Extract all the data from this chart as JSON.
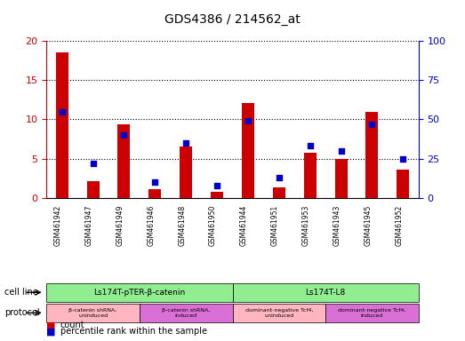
{
  "title": "GDS4386 / 214562_at",
  "samples": [
    "GSM461942",
    "GSM461947",
    "GSM461949",
    "GSM461946",
    "GSM461948",
    "GSM461950",
    "GSM461944",
    "GSM461951",
    "GSM461953",
    "GSM461943",
    "GSM461945",
    "GSM461952"
  ],
  "counts": [
    18.5,
    2.1,
    9.4,
    1.1,
    6.5,
    0.8,
    12.1,
    1.3,
    5.7,
    5.0,
    11.0,
    3.6
  ],
  "percentiles": [
    55,
    22,
    40,
    10,
    35,
    8,
    49,
    13,
    33,
    30,
    47,
    25
  ],
  "ylim_left": [
    0,
    20
  ],
  "ylim_right": [
    0,
    100
  ],
  "yticks_left": [
    0,
    5,
    10,
    15,
    20
  ],
  "yticks_right": [
    0,
    25,
    50,
    75,
    100
  ],
  "bar_color": "#cc0000",
  "dot_color": "#0000cc",
  "bar_width": 0.4,
  "cell_line_groups": [
    {
      "label": "Ls174T-pTER-β-catenin",
      "start": 0,
      "end": 6,
      "color": "#90ee90"
    },
    {
      "label": "Ls174T-L8",
      "start": 6,
      "end": 12,
      "color": "#90ee90"
    }
  ],
  "protocol_groups": [
    {
      "label": "β-catenin shRNA,\nuninduced",
      "start": 0,
      "end": 3,
      "color": "#ffb6c1"
    },
    {
      "label": "β-catenin shRNA,\ninduced",
      "start": 3,
      "end": 6,
      "color": "#da70d6"
    },
    {
      "label": "dominant-negative Tcf4,\nuninduced",
      "start": 6,
      "end": 9,
      "color": "#ffb6c1"
    },
    {
      "label": "dominant-negative Tcf4,\ninduced",
      "start": 9,
      "end": 12,
      "color": "#da70d6"
    }
  ],
  "legend_count_label": "count",
  "legend_pct_label": "percentile rank within the sample",
  "cell_line_label": "cell line",
  "protocol_label": "protocol",
  "bg_color": "#ffffff",
  "grid_color": "#000000",
  "tick_label_color_left": "#cc0000",
  "tick_label_color_right": "#0000cc"
}
